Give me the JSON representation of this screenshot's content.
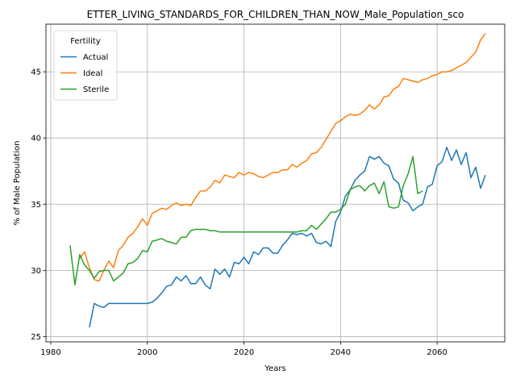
{
  "chart_data": {
    "type": "line",
    "title": "ETTER_LIVING_STANDARDS_FOR_CHILDREN_THAN_NOW_Male_Population_sco",
    "xlabel": "Years",
    "ylabel": "% of Male Population",
    "xlim": [
      1979,
      2074
    ],
    "ylim": [
      24.6,
      48.6
    ],
    "xticks": [
      1980,
      2000,
      2020,
      2040,
      2060
    ],
    "yticks": [
      25,
      30,
      35,
      40,
      45
    ],
    "grid": true,
    "legend": {
      "title": "Fertility",
      "placement": "upper-left"
    },
    "series": [
      {
        "name": "Actual",
        "color": "#1f77b4",
        "x": [
          1988,
          1989,
          1990,
          1991,
          1992,
          1993,
          1994,
          1995,
          1996,
          1997,
          1998,
          1999,
          2000,
          2001,
          2002,
          2003,
          2004,
          2005,
          2006,
          2007,
          2008,
          2009,
          2010,
          2011,
          2012,
          2013,
          2014,
          2015,
          2016,
          2017,
          2018,
          2019,
          2020,
          2021,
          2022,
          2023,
          2024,
          2025,
          2026,
          2027,
          2028,
          2029,
          2030,
          2031,
          2032,
          2033,
          2034,
          2035,
          2036,
          2037,
          2038,
          2039,
          2040,
          2041,
          2042,
          2043,
          2044,
          2045,
          2046,
          2047,
          2048,
          2049,
          2050,
          2051,
          2052,
          2053,
          2054,
          2055,
          2056,
          2057,
          2058,
          2059,
          2060,
          2061,
          2062,
          2063,
          2064,
          2065,
          2066,
          2067,
          2068,
          2069,
          2070
        ],
        "values": [
          25.7,
          27.5,
          27.3,
          27.2,
          27.5,
          27.5,
          27.5,
          27.5,
          27.5,
          27.5,
          27.5,
          27.5,
          27.5,
          27.6,
          27.9,
          28.3,
          28.8,
          28.9,
          29.5,
          29.2,
          29.6,
          29.0,
          29.0,
          29.5,
          28.9,
          28.6,
          30.1,
          29.7,
          30.1,
          29.5,
          30.6,
          30.5,
          31.0,
          30.5,
          31.4,
          31.2,
          31.7,
          31.7,
          31.3,
          31.3,
          31.9,
          32.3,
          32.8,
          32.7,
          32.8,
          32.6,
          32.8,
          32.1,
          32.0,
          32.2,
          31.8,
          33.7,
          34.4,
          35.6,
          36.1,
          36.8,
          37.2,
          37.5,
          38.6,
          38.4,
          38.6,
          38.1,
          37.9,
          36.9,
          36.6,
          35.3,
          35.1,
          34.5,
          34.8,
          35.0,
          36.3,
          36.5,
          37.9,
          38.2,
          39.3,
          38.3,
          39.1,
          38.0,
          38.9,
          37.0,
          37.8,
          36.2,
          37.2
        ]
      },
      {
        "name": "Ideal",
        "color": "#ff7f0e",
        "x": [
          1986,
          1987,
          1988,
          1989,
          1990,
          1991,
          1992,
          1993,
          1994,
          1995,
          1996,
          1997,
          1998,
          1999,
          2000,
          2001,
          2002,
          2003,
          2004,
          2005,
          2006,
          2007,
          2008,
          2009,
          2010,
          2011,
          2012,
          2013,
          2014,
          2015,
          2016,
          2017,
          2018,
          2019,
          2020,
          2021,
          2022,
          2023,
          2024,
          2025,
          2026,
          2027,
          2028,
          2029,
          2030,
          2031,
          2032,
          2033,
          2034,
          2035,
          2036,
          2037,
          2038,
          2039,
          2040,
          2041,
          2042,
          2043,
          2044,
          2045,
          2046,
          2047,
          2048,
          2049,
          2050,
          2051,
          2052,
          2053,
          2054,
          2055,
          2056,
          2057,
          2058,
          2059,
          2060,
          2061,
          2062,
          2063,
          2064,
          2065,
          2066,
          2067,
          2068,
          2069,
          2070
        ],
        "values": [
          30.9,
          31.4,
          30.2,
          29.3,
          29.2,
          30.0,
          30.7,
          30.2,
          31.5,
          31.9,
          32.5,
          32.8,
          33.3,
          33.9,
          33.4,
          34.3,
          34.5,
          34.7,
          34.6,
          34.9,
          35.1,
          34.9,
          35.0,
          34.9,
          35.5,
          36.0,
          36.0,
          36.3,
          36.8,
          36.6,
          37.2,
          37.1,
          37.0,
          37.4,
          37.2,
          37.4,
          37.3,
          37.1,
          37.0,
          37.2,
          37.4,
          37.4,
          37.6,
          37.6,
          38.0,
          37.8,
          38.1,
          38.3,
          38.8,
          38.9,
          39.3,
          39.9,
          40.5,
          41.1,
          41.3,
          41.6,
          41.8,
          41.7,
          41.8,
          42.1,
          42.5,
          42.2,
          42.5,
          43.1,
          43.2,
          43.7,
          43.9,
          44.5,
          44.4,
          44.3,
          44.2,
          44.4,
          44.5,
          44.7,
          44.8,
          45.0,
          45.0,
          45.1,
          45.3,
          45.5,
          45.7,
          46.1,
          46.5,
          47.4,
          47.9
        ]
      },
      {
        "name": "Sterile",
        "color": "#2ca02c",
        "x": [
          1984,
          1985,
          1986,
          1987,
          1988,
          1989,
          1990,
          1991,
          1992,
          1993,
          1994,
          1995,
          1996,
          1997,
          1998,
          1999,
          2000,
          2001,
          2002,
          2003,
          2004,
          2005,
          2006,
          2007,
          2008,
          2009,
          2010,
          2011,
          2012,
          2013,
          2014,
          2015,
          2016,
          2017,
          2018,
          2019,
          2020,
          2021,
          2022,
          2023,
          2024,
          2025,
          2026,
          2027,
          2028,
          2029,
          2030,
          2031,
          2032,
          2033,
          2034,
          2035,
          2036,
          2037,
          2038,
          2039,
          2040,
          2041,
          2042,
          2043,
          2044,
          2045,
          2046,
          2047,
          2048,
          2049,
          2050,
          2051,
          2052,
          2053,
          2054,
          2055,
          2056,
          2057
        ],
        "values": [
          31.9,
          28.9,
          31.2,
          30.4,
          30.0,
          29.4,
          29.9,
          30.0,
          30.0,
          29.2,
          29.5,
          29.8,
          30.5,
          30.6,
          30.9,
          31.5,
          31.4,
          32.2,
          32.3,
          32.4,
          32.2,
          32.1,
          32.0,
          32.5,
          32.5,
          33.0,
          33.1,
          33.1,
          33.1,
          33.0,
          33.0,
          32.9,
          32.9,
          32.9,
          32.9,
          32.9,
          32.9,
          32.9,
          32.9,
          32.9,
          32.9,
          32.9,
          32.9,
          32.9,
          32.9,
          32.9,
          32.9,
          32.9,
          33.0,
          33.0,
          33.4,
          33.1,
          33.5,
          33.9,
          34.4,
          34.4,
          34.6,
          35.0,
          36.1,
          36.3,
          36.4,
          36.0,
          36.4,
          36.6,
          35.8,
          36.7,
          34.8,
          34.7,
          34.8,
          36.4,
          37.3,
          38.6,
          35.8,
          36.0
        ]
      }
    ]
  }
}
